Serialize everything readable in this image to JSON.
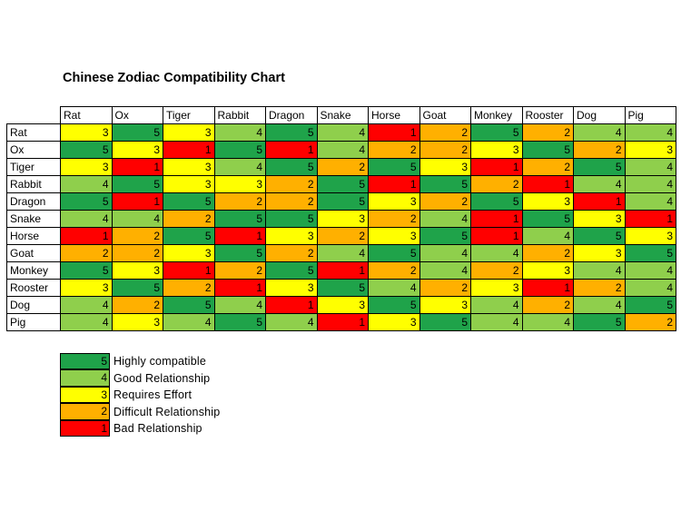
{
  "title": "Chinese Zodiac Compatibility Chart",
  "colors": {
    "5": "#1fa34a",
    "4": "#8fcf4c",
    "3": "#ffff00",
    "2": "#ffb000",
    "1": "#ff0000"
  },
  "chart_data": {
    "type": "heatmap",
    "title": "Chinese Zodiac Compatibility Chart",
    "columns": [
      "Rat",
      "Ox",
      "Tiger",
      "Rabbit",
      "Dragon",
      "Snake",
      "Horse",
      "Goat",
      "Monkey",
      "Rooster",
      "Dog",
      "Pig"
    ],
    "rows": [
      "Rat",
      "Ox",
      "Tiger",
      "Rabbit",
      "Dragon",
      "Snake",
      "Horse",
      "Goat",
      "Monkey",
      "Rooster",
      "Dog",
      "Pig"
    ],
    "values": [
      [
        3,
        5,
        3,
        4,
        5,
        4,
        1,
        2,
        5,
        2,
        4,
        4
      ],
      [
        5,
        3,
        1,
        5,
        1,
        4,
        2,
        2,
        3,
        5,
        2,
        3
      ],
      [
        3,
        1,
        3,
        4,
        5,
        2,
        5,
        3,
        1,
        2,
        5,
        4
      ],
      [
        4,
        5,
        3,
        3,
        2,
        5,
        1,
        5,
        2,
        1,
        4,
        4
      ],
      [
        5,
        1,
        5,
        2,
        2,
        5,
        3,
        2,
        5,
        3,
        1,
        4
      ],
      [
        4,
        4,
        2,
        5,
        5,
        3,
        2,
        4,
        1,
        5,
        3,
        1
      ],
      [
        1,
        2,
        5,
        1,
        3,
        2,
        3,
        5,
        1,
        4,
        5,
        3
      ],
      [
        2,
        2,
        3,
        5,
        2,
        4,
        5,
        4,
        4,
        2,
        3,
        5
      ],
      [
        5,
        3,
        1,
        2,
        5,
        1,
        2,
        4,
        2,
        3,
        4,
        4
      ],
      [
        3,
        5,
        2,
        1,
        3,
        5,
        4,
        2,
        3,
        1,
        2,
        4
      ],
      [
        4,
        2,
        5,
        4,
        1,
        3,
        5,
        3,
        4,
        2,
        4,
        5
      ],
      [
        4,
        3,
        4,
        5,
        4,
        1,
        3,
        5,
        4,
        4,
        5,
        2
      ]
    ],
    "legend": [
      {
        "value": 5,
        "label": "Highly compatible"
      },
      {
        "value": 4,
        "label": "Good Relationship"
      },
      {
        "value": 3,
        "label": "Requires Effort"
      },
      {
        "value": 2,
        "label": "Difficult Relationship"
      },
      {
        "value": 1,
        "label": "Bad Relationship"
      }
    ]
  }
}
